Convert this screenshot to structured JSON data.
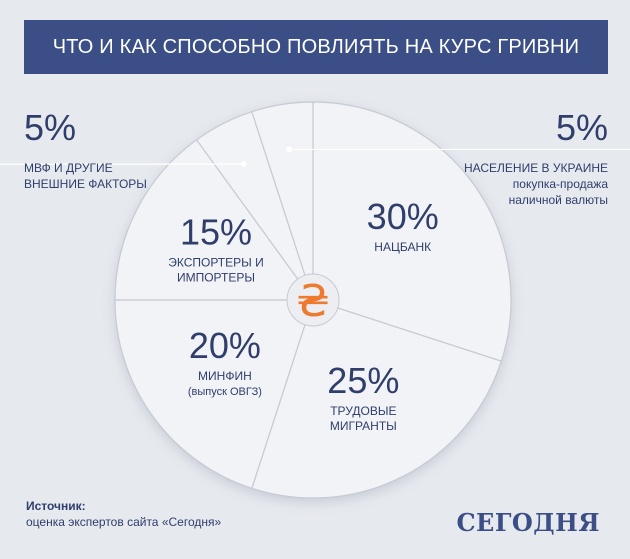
{
  "header": {
    "title": "ЧТО И КАК СПОСОБНО ПОВЛИЯТЬ НА КУРС ГРИВНИ"
  },
  "chart_data": {
    "type": "pie",
    "title": "ЧТО И КАК СПОСОБНО ПОВЛИЯТЬ НА КУРС ГРИВНИ",
    "slices": [
      {
        "name": "НАЦБАНК",
        "value": 30,
        "label": "30%",
        "sublabel": ""
      },
      {
        "name": "ТРУДОВЫЕ МИГРАНТЫ",
        "value": 25,
        "label": "25%",
        "sublabel": ""
      },
      {
        "name": "МИНФИН",
        "value": 20,
        "label": "20%",
        "sublabel": "(выпуск ОВГЗ)"
      },
      {
        "name": "ЭКСПОРТЕРЫ И ИМПОРТЕРЫ",
        "value": 15,
        "label": "15%",
        "sublabel": ""
      },
      {
        "name": "МВФ И ДРУГИЕ ВНЕШНИЕ ФАКТОРЫ",
        "value": 5,
        "label": "5%",
        "sublabel": ""
      },
      {
        "name": "НАСЕЛЕНИЕ В УКРАИНЕ",
        "value": 5,
        "label": "5%",
        "sublabel": "покупка-продажа наличной валюты"
      }
    ],
    "center_symbol": "₴",
    "colors": {
      "slice": "#f2f3f6",
      "border": "#c6cad3",
      "text": "#2f3e6b",
      "accent": "#ee7a2f"
    }
  },
  "callouts": {
    "left": {
      "pct": "5%",
      "line1": "МВФ И ДРУГИЕ",
      "line2": "ВНЕШНИЕ ФАКТОРЫ"
    },
    "right": {
      "pct": "5%",
      "line1": "НАСЕЛЕНИЕ В УКРАИНЕ",
      "line2": "покупка-продажа",
      "line3": "наличной валюты"
    }
  },
  "source": {
    "label": "Источник:",
    "text": "оценка экспертов сайта «Сегодня»"
  },
  "brand": "СЕГОДНЯ"
}
